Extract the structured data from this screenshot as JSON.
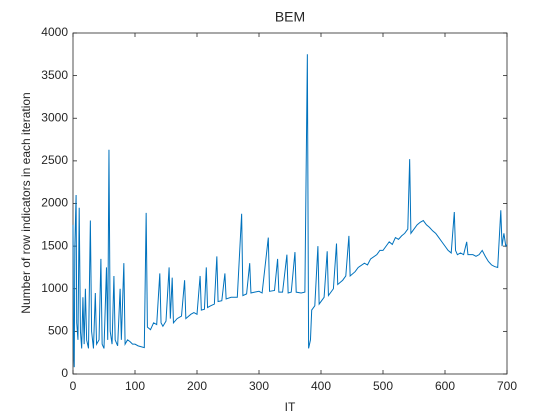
{
  "chart_data": {
    "type": "line",
    "title": "BEM",
    "x_label": "IT",
    "y_label": "Number of row indicators in each iteration",
    "xlim": [
      0,
      700
    ],
    "xticks": [
      0,
      100,
      200,
      300,
      400,
      500,
      600,
      700
    ],
    "ylim": [
      0,
      4000
    ],
    "yticks": [
      0,
      500,
      1000,
      1500,
      2000,
      2500,
      3000,
      3500,
      4000
    ],
    "grid": false,
    "series": [
      {
        "color": "#0072bd",
        "x": [
          0,
          1,
          2,
          3,
          5,
          6,
          8,
          10,
          12,
          14,
          16,
          18,
          20,
          22,
          25,
          28,
          30,
          33,
          36,
          38,
          42,
          45,
          47,
          50,
          54,
          56,
          58,
          60,
          63,
          66,
          68,
          72,
          76,
          78,
          82,
          84,
          88,
          92,
          96,
          100,
          105,
          110,
          115,
          118,
          120,
          125,
          130,
          135,
          140,
          142,
          145,
          150,
          155,
          157,
          160,
          162,
          168,
          175,
          180,
          182,
          190,
          195,
          200,
          205,
          207,
          212,
          215,
          217,
          222,
          228,
          232,
          234,
          240,
          245,
          247,
          255,
          265,
          272,
          274,
          280,
          285,
          287,
          293,
          300,
          305,
          315,
          317,
          325,
          330,
          332,
          338,
          345,
          347,
          352,
          358,
          360,
          368,
          374,
          378,
          380,
          383,
          385,
          390,
          395,
          397,
          405,
          410,
          412,
          420,
          425,
          427,
          435,
          440,
          445,
          447,
          455,
          460,
          470,
          475,
          480,
          490,
          495,
          500,
          505,
          510,
          515,
          520,
          525,
          530,
          535,
          540,
          543,
          545,
          550,
          555,
          560,
          565,
          570,
          575,
          580,
          585,
          590,
          595,
          600,
          605,
          610,
          615,
          617,
          620,
          625,
          630,
          635,
          637,
          645,
          650,
          655,
          660,
          665,
          670,
          675,
          680,
          685,
          690,
          692,
          695,
          698,
          700
        ],
        "values": [
          1750,
          300,
          80,
          1500,
          2100,
          600,
          400,
          1950,
          500,
          300,
          900,
          350,
          1000,
          400,
          300,
          1800,
          500,
          300,
          950,
          350,
          400,
          1350,
          350,
          300,
          1250,
          400,
          2630,
          500,
          350,
          1150,
          400,
          330,
          1000,
          400,
          1300,
          350,
          400,
          380,
          350,
          350,
          330,
          320,
          310,
          1890,
          550,
          520,
          600,
          580,
          1180,
          600,
          560,
          620,
          1250,
          650,
          1130,
          600,
          650,
          680,
          1100,
          650,
          700,
          720,
          700,
          1150,
          750,
          760,
          1250,
          780,
          800,
          820,
          1380,
          850,
          860,
          1180,
          880,
          900,
          900,
          1880,
          920,
          940,
          1300,
          950,
          960,
          970,
          950,
          1600,
          970,
          980,
          1350,
          960,
          960,
          1400,
          950,
          960,
          1430,
          960,
          950,
          960,
          3750,
          300,
          400,
          750,
          800,
          1500,
          820,
          900,
          1440,
          920,
          1000,
          1530,
          1050,
          1100,
          1150,
          1620,
          1150,
          1200,
          1250,
          1300,
          1280,
          1350,
          1400,
          1450,
          1450,
          1500,
          1550,
          1520,
          1600,
          1580,
          1620,
          1650,
          1700,
          2520,
          1650,
          1700,
          1750,
          1780,
          1800,
          1750,
          1720,
          1680,
          1650,
          1600,
          1550,
          1500,
          1450,
          1420,
          1900,
          1450,
          1400,
          1420,
          1400,
          1550,
          1400,
          1400,
          1380,
          1400,
          1450,
          1380,
          1320,
          1280,
          1260,
          1250,
          1920,
          1500,
          1650,
          1500,
          1520
        ]
      }
    ]
  }
}
